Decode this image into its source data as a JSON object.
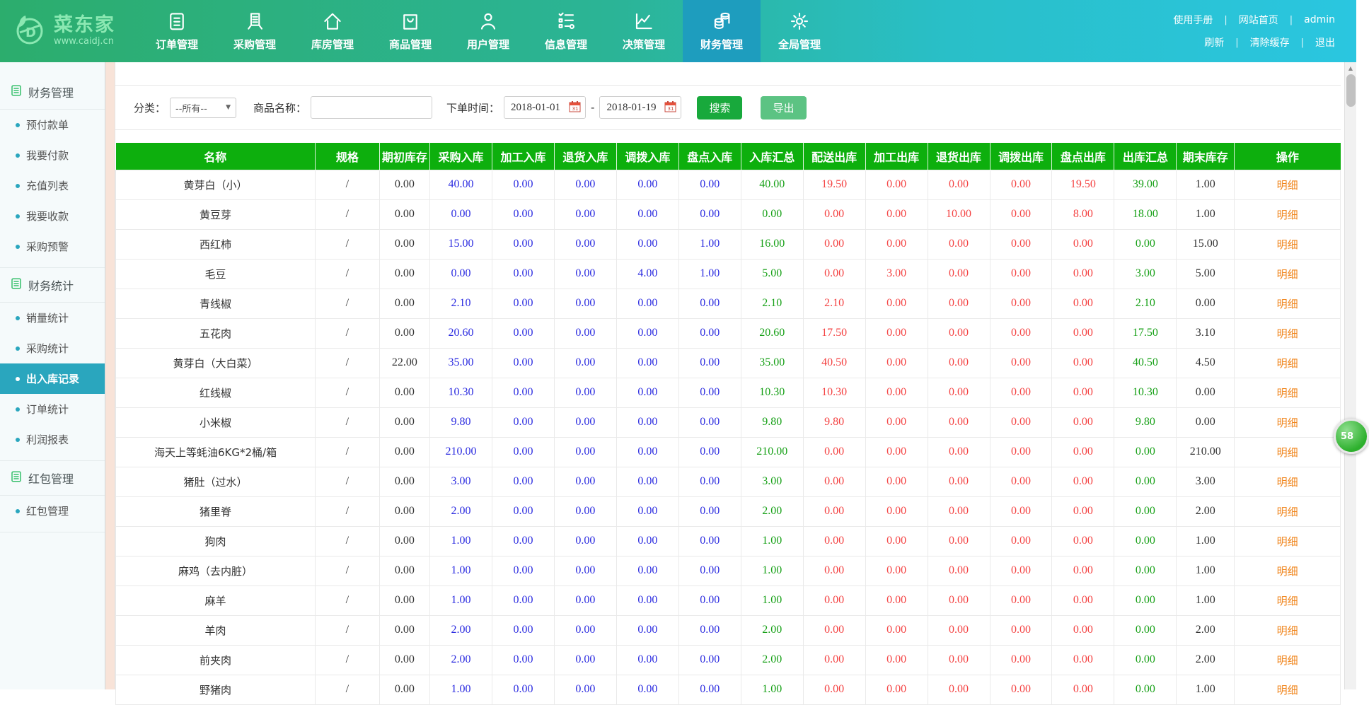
{
  "brand": {
    "name": "菜东家",
    "url": "www.caidj.cn"
  },
  "nav": {
    "items": [
      {
        "label": "订单管理",
        "name": "order-management",
        "icon": "clipboard-icon"
      },
      {
        "label": "采购管理",
        "name": "purchase-management",
        "icon": "book-icon"
      },
      {
        "label": "库房管理",
        "name": "warehouse-management",
        "icon": "home-icon"
      },
      {
        "label": "商品管理",
        "name": "product-management",
        "icon": "bag-icon"
      },
      {
        "label": "用户管理",
        "name": "user-management",
        "icon": "person-icon"
      },
      {
        "label": "信息管理",
        "name": "info-management",
        "icon": "checklist-gear-icon"
      },
      {
        "label": "决策管理",
        "name": "decision-management",
        "icon": "line-chart-icon"
      },
      {
        "label": "财务管理",
        "name": "finance-management",
        "icon": "coins-icon",
        "active": true
      },
      {
        "label": "全局管理",
        "name": "global-management",
        "icon": "gear-icon"
      }
    ]
  },
  "topLinks": {
    "row1": [
      {
        "label": "使用手册",
        "name": "manual-link"
      },
      {
        "label": "网站首页",
        "name": "site-home-link"
      },
      {
        "label": "admin",
        "name": "admin-user-link"
      }
    ],
    "row2": [
      {
        "label": "刷新",
        "name": "refresh-link"
      },
      {
        "label": "清除缓存",
        "name": "clear-cache-link"
      },
      {
        "label": "退出",
        "name": "logout-link"
      }
    ]
  },
  "sidebar": {
    "sections": [
      {
        "title": "财务管理",
        "name": "finance-management",
        "items": [
          {
            "label": "预付款单",
            "name": "prepayment-orders"
          },
          {
            "label": "我要付款",
            "name": "i-want-to-pay"
          },
          {
            "label": "充值列表",
            "name": "recharge-list"
          },
          {
            "label": "我要收款",
            "name": "i-want-to-collect"
          },
          {
            "label": "采购预警",
            "name": "purchase-warning"
          }
        ]
      },
      {
        "title": "财务统计",
        "name": "finance-statistics",
        "items": [
          {
            "label": "销量统计",
            "name": "sales-statistics"
          },
          {
            "label": "采购统计",
            "name": "purchase-statistics"
          },
          {
            "label": "出入库记录",
            "name": "stock-in-out-records",
            "active": true
          },
          {
            "label": "订单统计",
            "name": "order-statistics"
          },
          {
            "label": "利润报表",
            "name": "profit-report"
          }
        ]
      },
      {
        "title": "红包管理",
        "name": "redpacket-management",
        "items": [
          {
            "label": "红包管理",
            "name": "redpacket-management-item"
          }
        ]
      }
    ]
  },
  "filters": {
    "category_label": "分类：",
    "category_value": "--所有--",
    "product_label": "商品名称：",
    "product_value": "",
    "date_label": "下单时间：",
    "date_from": "2018-01-01",
    "date_separator": "-",
    "date_to": "2018-01-19",
    "search_label": "搜索",
    "export_label": "导出"
  },
  "table": {
    "columns": [
      "名称",
      "规格",
      "期初库存",
      "采购入库",
      "加工入库",
      "退货入库",
      "调拨入库",
      "盘点入库",
      "入库汇总",
      "配送出库",
      "加工出库",
      "退货出库",
      "调拨出库",
      "盘点出库",
      "出库汇总",
      "期末库存",
      "操作"
    ],
    "action_label": "明细",
    "rows": [
      {
        "name": "黄芽白（小）",
        "spec": "/",
        "begin": "0.00",
        "in": [
          "40.00",
          "0.00",
          "0.00",
          "0.00",
          "0.00"
        ],
        "in_total": "40.00",
        "out": [
          "19.50",
          "0.00",
          "0.00",
          "0.00",
          "19.50"
        ],
        "out_total": "39.00",
        "end": "1.00"
      },
      {
        "name": "黄豆芽",
        "spec": "/",
        "begin": "0.00",
        "in": [
          "0.00",
          "0.00",
          "0.00",
          "0.00",
          "0.00"
        ],
        "in_total": "0.00",
        "out": [
          "0.00",
          "0.00",
          "10.00",
          "0.00",
          "8.00"
        ],
        "out_total": "18.00",
        "end": "1.00"
      },
      {
        "name": "西红柿",
        "spec": "/",
        "begin": "0.00",
        "in": [
          "15.00",
          "0.00",
          "0.00",
          "0.00",
          "1.00"
        ],
        "in_total": "16.00",
        "out": [
          "0.00",
          "0.00",
          "0.00",
          "0.00",
          "0.00"
        ],
        "out_total": "0.00",
        "end": "15.00"
      },
      {
        "name": "毛豆",
        "spec": "/",
        "begin": "0.00",
        "in": [
          "0.00",
          "0.00",
          "0.00",
          "4.00",
          "1.00"
        ],
        "in_total": "5.00",
        "out": [
          "0.00",
          "3.00",
          "0.00",
          "0.00",
          "0.00"
        ],
        "out_total": "3.00",
        "end": "5.00"
      },
      {
        "name": "青线椒",
        "spec": "/",
        "begin": "0.00",
        "in": [
          "2.10",
          "0.00",
          "0.00",
          "0.00",
          "0.00"
        ],
        "in_total": "2.10",
        "out": [
          "2.10",
          "0.00",
          "0.00",
          "0.00",
          "0.00"
        ],
        "out_total": "2.10",
        "end": "0.00"
      },
      {
        "name": "五花肉",
        "spec": "/",
        "begin": "0.00",
        "in": [
          "20.60",
          "0.00",
          "0.00",
          "0.00",
          "0.00"
        ],
        "in_total": "20.60",
        "out": [
          "17.50",
          "0.00",
          "0.00",
          "0.00",
          "0.00"
        ],
        "out_total": "17.50",
        "end": "3.10"
      },
      {
        "name": "黄芽白（大白菜）",
        "spec": "/",
        "begin": "22.00",
        "in": [
          "35.00",
          "0.00",
          "0.00",
          "0.00",
          "0.00"
        ],
        "in_total": "35.00",
        "out": [
          "40.50",
          "0.00",
          "0.00",
          "0.00",
          "0.00"
        ],
        "out_total": "40.50",
        "end": "4.50"
      },
      {
        "name": "红线椒",
        "spec": "/",
        "begin": "0.00",
        "in": [
          "10.30",
          "0.00",
          "0.00",
          "0.00",
          "0.00"
        ],
        "in_total": "10.30",
        "out": [
          "10.30",
          "0.00",
          "0.00",
          "0.00",
          "0.00"
        ],
        "out_total": "10.30",
        "end": "0.00"
      },
      {
        "name": "小米椒",
        "spec": "/",
        "begin": "0.00",
        "in": [
          "9.80",
          "0.00",
          "0.00",
          "0.00",
          "0.00"
        ],
        "in_total": "9.80",
        "out": [
          "9.80",
          "0.00",
          "0.00",
          "0.00",
          "0.00"
        ],
        "out_total": "9.80",
        "end": "0.00"
      },
      {
        "name": "海天上等蚝油6KG*2桶/箱",
        "spec": "/",
        "begin": "0.00",
        "in": [
          "210.00",
          "0.00",
          "0.00",
          "0.00",
          "0.00"
        ],
        "in_total": "210.00",
        "out": [
          "0.00",
          "0.00",
          "0.00",
          "0.00",
          "0.00"
        ],
        "out_total": "0.00",
        "end": "210.00"
      },
      {
        "name": "猪肚（过水）",
        "spec": "/",
        "begin": "0.00",
        "in": [
          "3.00",
          "0.00",
          "0.00",
          "0.00",
          "0.00"
        ],
        "in_total": "3.00",
        "out": [
          "0.00",
          "0.00",
          "0.00",
          "0.00",
          "0.00"
        ],
        "out_total": "0.00",
        "end": "3.00"
      },
      {
        "name": "猪里脊",
        "spec": "/",
        "begin": "0.00",
        "in": [
          "2.00",
          "0.00",
          "0.00",
          "0.00",
          "0.00"
        ],
        "in_total": "2.00",
        "out": [
          "0.00",
          "0.00",
          "0.00",
          "0.00",
          "0.00"
        ],
        "out_total": "0.00",
        "end": "2.00"
      },
      {
        "name": "狗肉",
        "spec": "/",
        "begin": "0.00",
        "in": [
          "1.00",
          "0.00",
          "0.00",
          "0.00",
          "0.00"
        ],
        "in_total": "1.00",
        "out": [
          "0.00",
          "0.00",
          "0.00",
          "0.00",
          "0.00"
        ],
        "out_total": "0.00",
        "end": "1.00"
      },
      {
        "name": "麻鸡（去内脏）",
        "spec": "/",
        "begin": "0.00",
        "in": [
          "1.00",
          "0.00",
          "0.00",
          "0.00",
          "0.00"
        ],
        "in_total": "1.00",
        "out": [
          "0.00",
          "0.00",
          "0.00",
          "0.00",
          "0.00"
        ],
        "out_total": "0.00",
        "end": "1.00"
      },
      {
        "name": "麻羊",
        "spec": "/",
        "begin": "0.00",
        "in": [
          "1.00",
          "0.00",
          "0.00",
          "0.00",
          "0.00"
        ],
        "in_total": "1.00",
        "out": [
          "0.00",
          "0.00",
          "0.00",
          "0.00",
          "0.00"
        ],
        "out_total": "0.00",
        "end": "1.00"
      },
      {
        "name": "羊肉",
        "spec": "/",
        "begin": "0.00",
        "in": [
          "2.00",
          "0.00",
          "0.00",
          "0.00",
          "0.00"
        ],
        "in_total": "2.00",
        "out": [
          "0.00",
          "0.00",
          "0.00",
          "0.00",
          "0.00"
        ],
        "out_total": "0.00",
        "end": "2.00"
      },
      {
        "name": "前夹肉",
        "spec": "/",
        "begin": "0.00",
        "in": [
          "2.00",
          "0.00",
          "0.00",
          "0.00",
          "0.00"
        ],
        "in_total": "2.00",
        "out": [
          "0.00",
          "0.00",
          "0.00",
          "0.00",
          "0.00"
        ],
        "out_total": "0.00",
        "end": "2.00"
      },
      {
        "name": "野猪肉",
        "spec": "/",
        "begin": "0.00",
        "in": [
          "1.00",
          "0.00",
          "0.00",
          "0.00",
          "0.00"
        ],
        "in_total": "1.00",
        "out": [
          "0.00",
          "0.00",
          "0.00",
          "0.00",
          "0.00"
        ],
        "out_total": "0.00",
        "end": "1.00"
      }
    ]
  },
  "floating_badge": "58",
  "colors": {
    "nav_gradient_start": "#2CAD6D",
    "nav_gradient_end": "#2AC6E0",
    "nav_active": "#1E9DBE",
    "sidebar_active": "#2AA6BE",
    "table_header_green": "#0DAF0D",
    "in_blue": "#2B2BE0",
    "total_green": "#16A016",
    "out_red": "#F44242",
    "detail_orange": "#F0851C",
    "search_button_green": "#18A93C",
    "export_button_green": "#5CC383",
    "gutter_peach": "#F8E3D8"
  }
}
